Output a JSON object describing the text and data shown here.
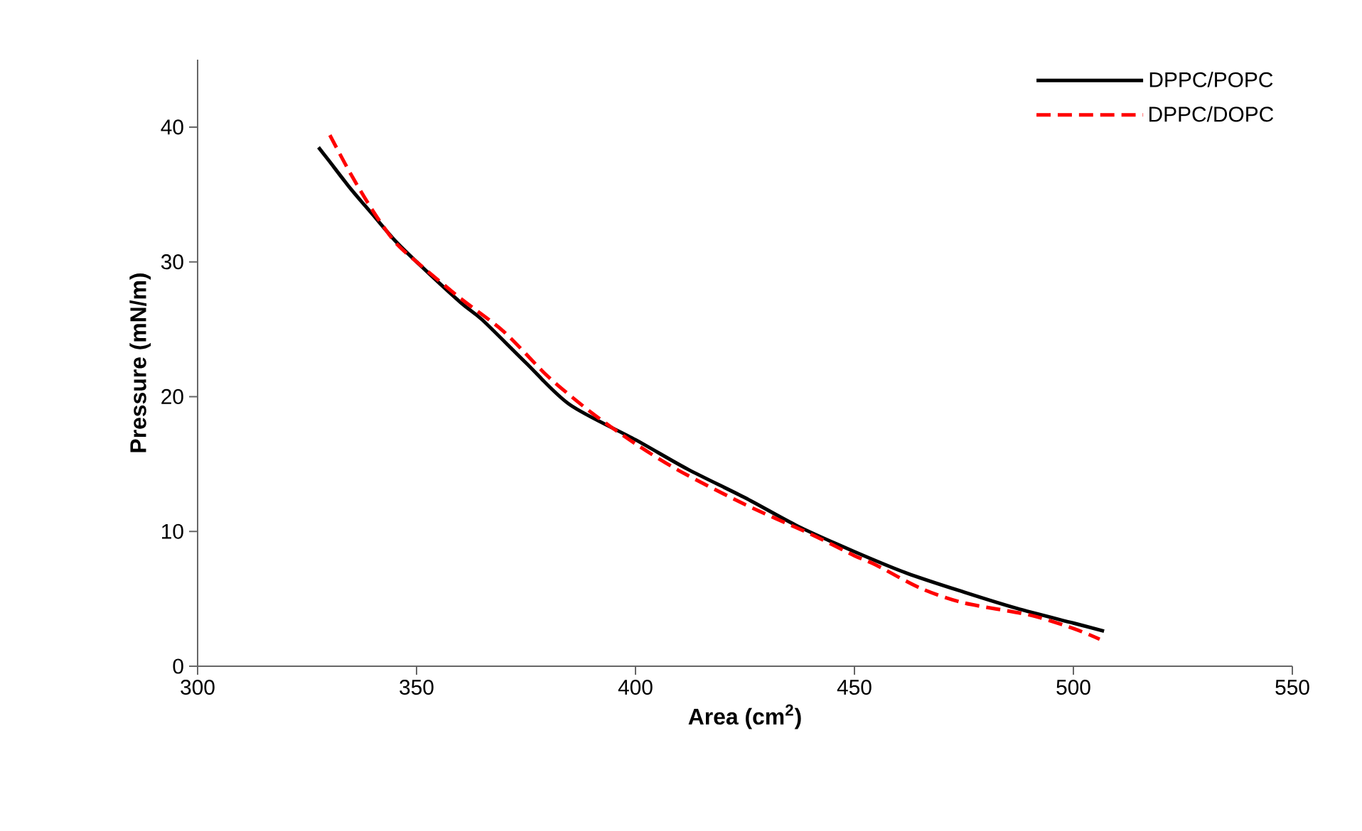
{
  "chart_data": {
    "type": "line",
    "xlabel": "Area (cm$^{2}$)",
    "ylabel": "Pressure (mN/m)",
    "xlim": [
      300,
      550
    ],
    "xticks": [
      300,
      350,
      400,
      450,
      500,
      550
    ],
    "ylim": [
      0,
      45
    ],
    "yticks": [
      0,
      10,
      20,
      30,
      40
    ],
    "legend": "top right",
    "grid": false,
    "marker": "none",
    "series": [
      {
        "name": "DPPC/POPC",
        "color": "#000000",
        "line_style": "solid",
        "x": [
          327.6,
          330,
          335,
          340,
          345,
          350,
          360,
          365,
          375,
          385,
          400,
          412,
          425,
          437,
          450,
          462,
          475,
          487,
          500,
          507
        ],
        "values": [
          38.5,
          37.5,
          35.4,
          33.5,
          31.6,
          30,
          27,
          25.7,
          22.5,
          19.4,
          16.8,
          14.6,
          12.5,
          10.4,
          8.5,
          6.9,
          5.5,
          4.3,
          3.2,
          2.6
        ]
      },
      {
        "name": "DPPC/DOPC",
        "color": "#ff0000",
        "line_style": "dashed",
        "x": [
          330.2,
          335,
          340,
          345,
          350,
          360,
          370,
          380,
          390,
          400,
          410,
          425,
          440,
          450,
          455,
          465,
          475,
          490,
          500,
          506
        ],
        "values": [
          39.4,
          36.5,
          33.8,
          31.5,
          30,
          27.3,
          24.8,
          21.5,
          18.8,
          16.5,
          14.5,
          12,
          9.8,
          8.2,
          7.5,
          5.8,
          4.7,
          3.8,
          2.8,
          2
        ]
      }
    ]
  }
}
